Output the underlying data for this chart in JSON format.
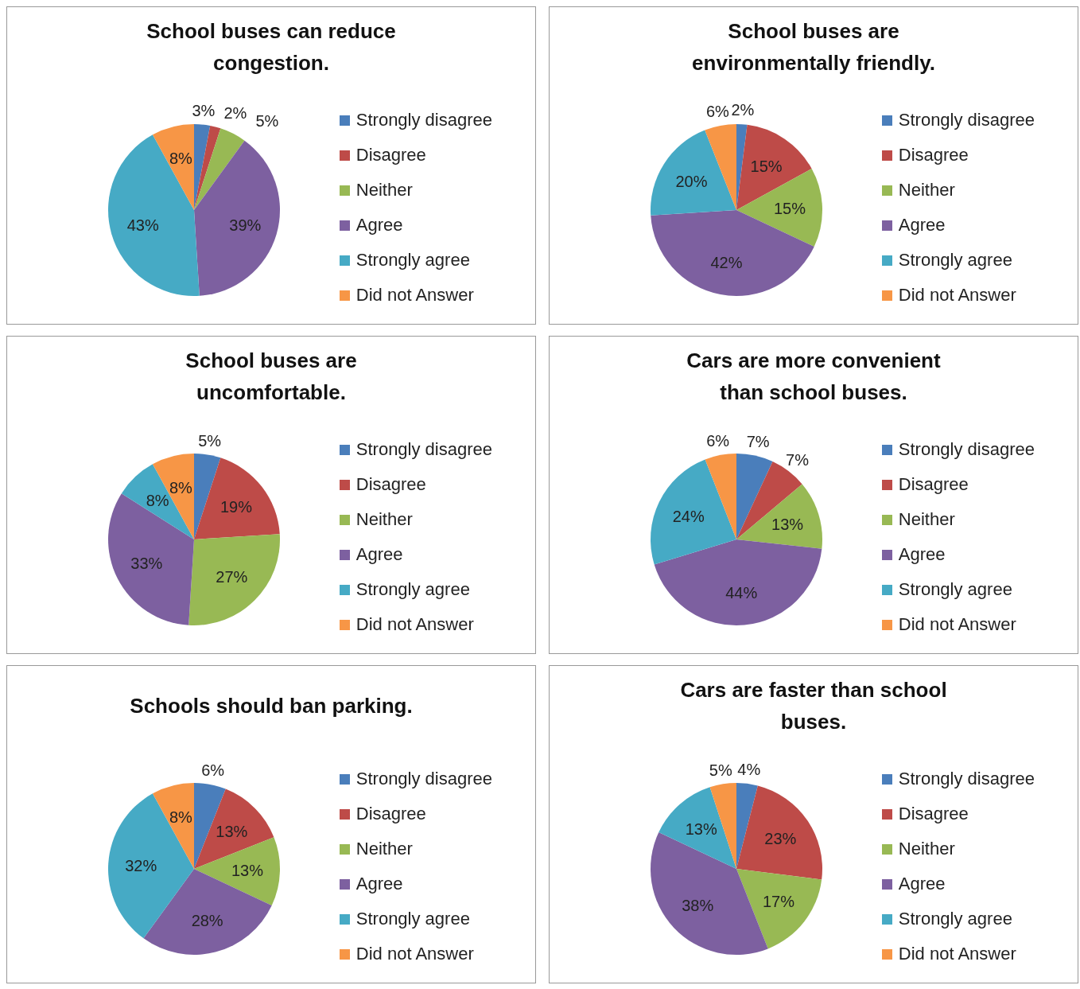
{
  "chart_data": [
    {
      "type": "pie",
      "title": "School buses can reduce congestion.",
      "categories": [
        "Strongly disagree",
        "Disagree",
        "Neither",
        "Agree",
        "Strongly agree",
        "Did not Answer"
      ],
      "values": [
        3,
        2,
        5,
        39,
        43,
        8
      ],
      "value_labels": [
        "3%",
        "2%",
        "5%",
        "39%",
        "43%",
        "8%"
      ],
      "colors": [
        "#4a7ebb",
        "#be4b48",
        "#98b954",
        "#7d60a0",
        "#46aac5",
        "#f79646"
      ],
      "legend": "right"
    },
    {
      "type": "pie",
      "title": "School buses are environmentally friendly.",
      "categories": [
        "Strongly disagree",
        "Disagree",
        "Neither",
        "Agree",
        "Strongly agree",
        "Did not Answer"
      ],
      "values": [
        2,
        15,
        15,
        42,
        20,
        6
      ],
      "value_labels": [
        "2%",
        "15%",
        "15%",
        "42%",
        "20%",
        "6%"
      ],
      "colors": [
        "#4a7ebb",
        "#be4b48",
        "#98b954",
        "#7d60a0",
        "#46aac5",
        "#f79646"
      ],
      "legend": "right"
    },
    {
      "type": "pie",
      "title": "School buses are uncomfortable.",
      "categories": [
        "Strongly disagree",
        "Disagree",
        "Neither",
        "Agree",
        "Strongly agree",
        "Did not Answer"
      ],
      "values": [
        5,
        19,
        27,
        33,
        8,
        8
      ],
      "value_labels": [
        "5%",
        "19%",
        "27%",
        "33%",
        "8%",
        "8%"
      ],
      "colors": [
        "#4a7ebb",
        "#be4b48",
        "#98b954",
        "#7d60a0",
        "#46aac5",
        "#f79646"
      ],
      "legend": "right"
    },
    {
      "type": "pie",
      "title": "Cars are more convenient than school buses.",
      "categories": [
        "Strongly disagree",
        "Disagree",
        "Neither",
        "Agree",
        "Strongly agree",
        "Did not Answer"
      ],
      "values": [
        7,
        7,
        13,
        44,
        24,
        6
      ],
      "value_labels": [
        "7%",
        "7%",
        "13%",
        "44%",
        "24%",
        "6%"
      ],
      "colors": [
        "#4a7ebb",
        "#be4b48",
        "#98b954",
        "#7d60a0",
        "#46aac5",
        "#f79646"
      ],
      "legend": "right"
    },
    {
      "type": "pie",
      "title": "Schools should ban parking.",
      "categories": [
        "Strongly disagree",
        "Disagree",
        "Neither",
        "Agree",
        "Strongly agree",
        "Did not Answer"
      ],
      "values": [
        6,
        13,
        13,
        28,
        32,
        8
      ],
      "value_labels": [
        "6%",
        "13%",
        "13%",
        "28%",
        "32%",
        "8%"
      ],
      "colors": [
        "#4a7ebb",
        "#be4b48",
        "#98b954",
        "#7d60a0",
        "#46aac5",
        "#f79646"
      ],
      "legend": "right"
    },
    {
      "type": "pie",
      "title": "Cars are faster than school buses.",
      "categories": [
        "Strongly disagree",
        "Disagree",
        "Neither",
        "Agree",
        "Strongly agree",
        "Did not Answer"
      ],
      "values": [
        4,
        23,
        17,
        38,
        13,
        5
      ],
      "value_labels": [
        "4%",
        "23%",
        "17%",
        "38%",
        "13%",
        "5%"
      ],
      "colors": [
        "#4a7ebb",
        "#be4b48",
        "#98b954",
        "#7d60a0",
        "#46aac5",
        "#f79646"
      ],
      "legend": "right"
    }
  ]
}
